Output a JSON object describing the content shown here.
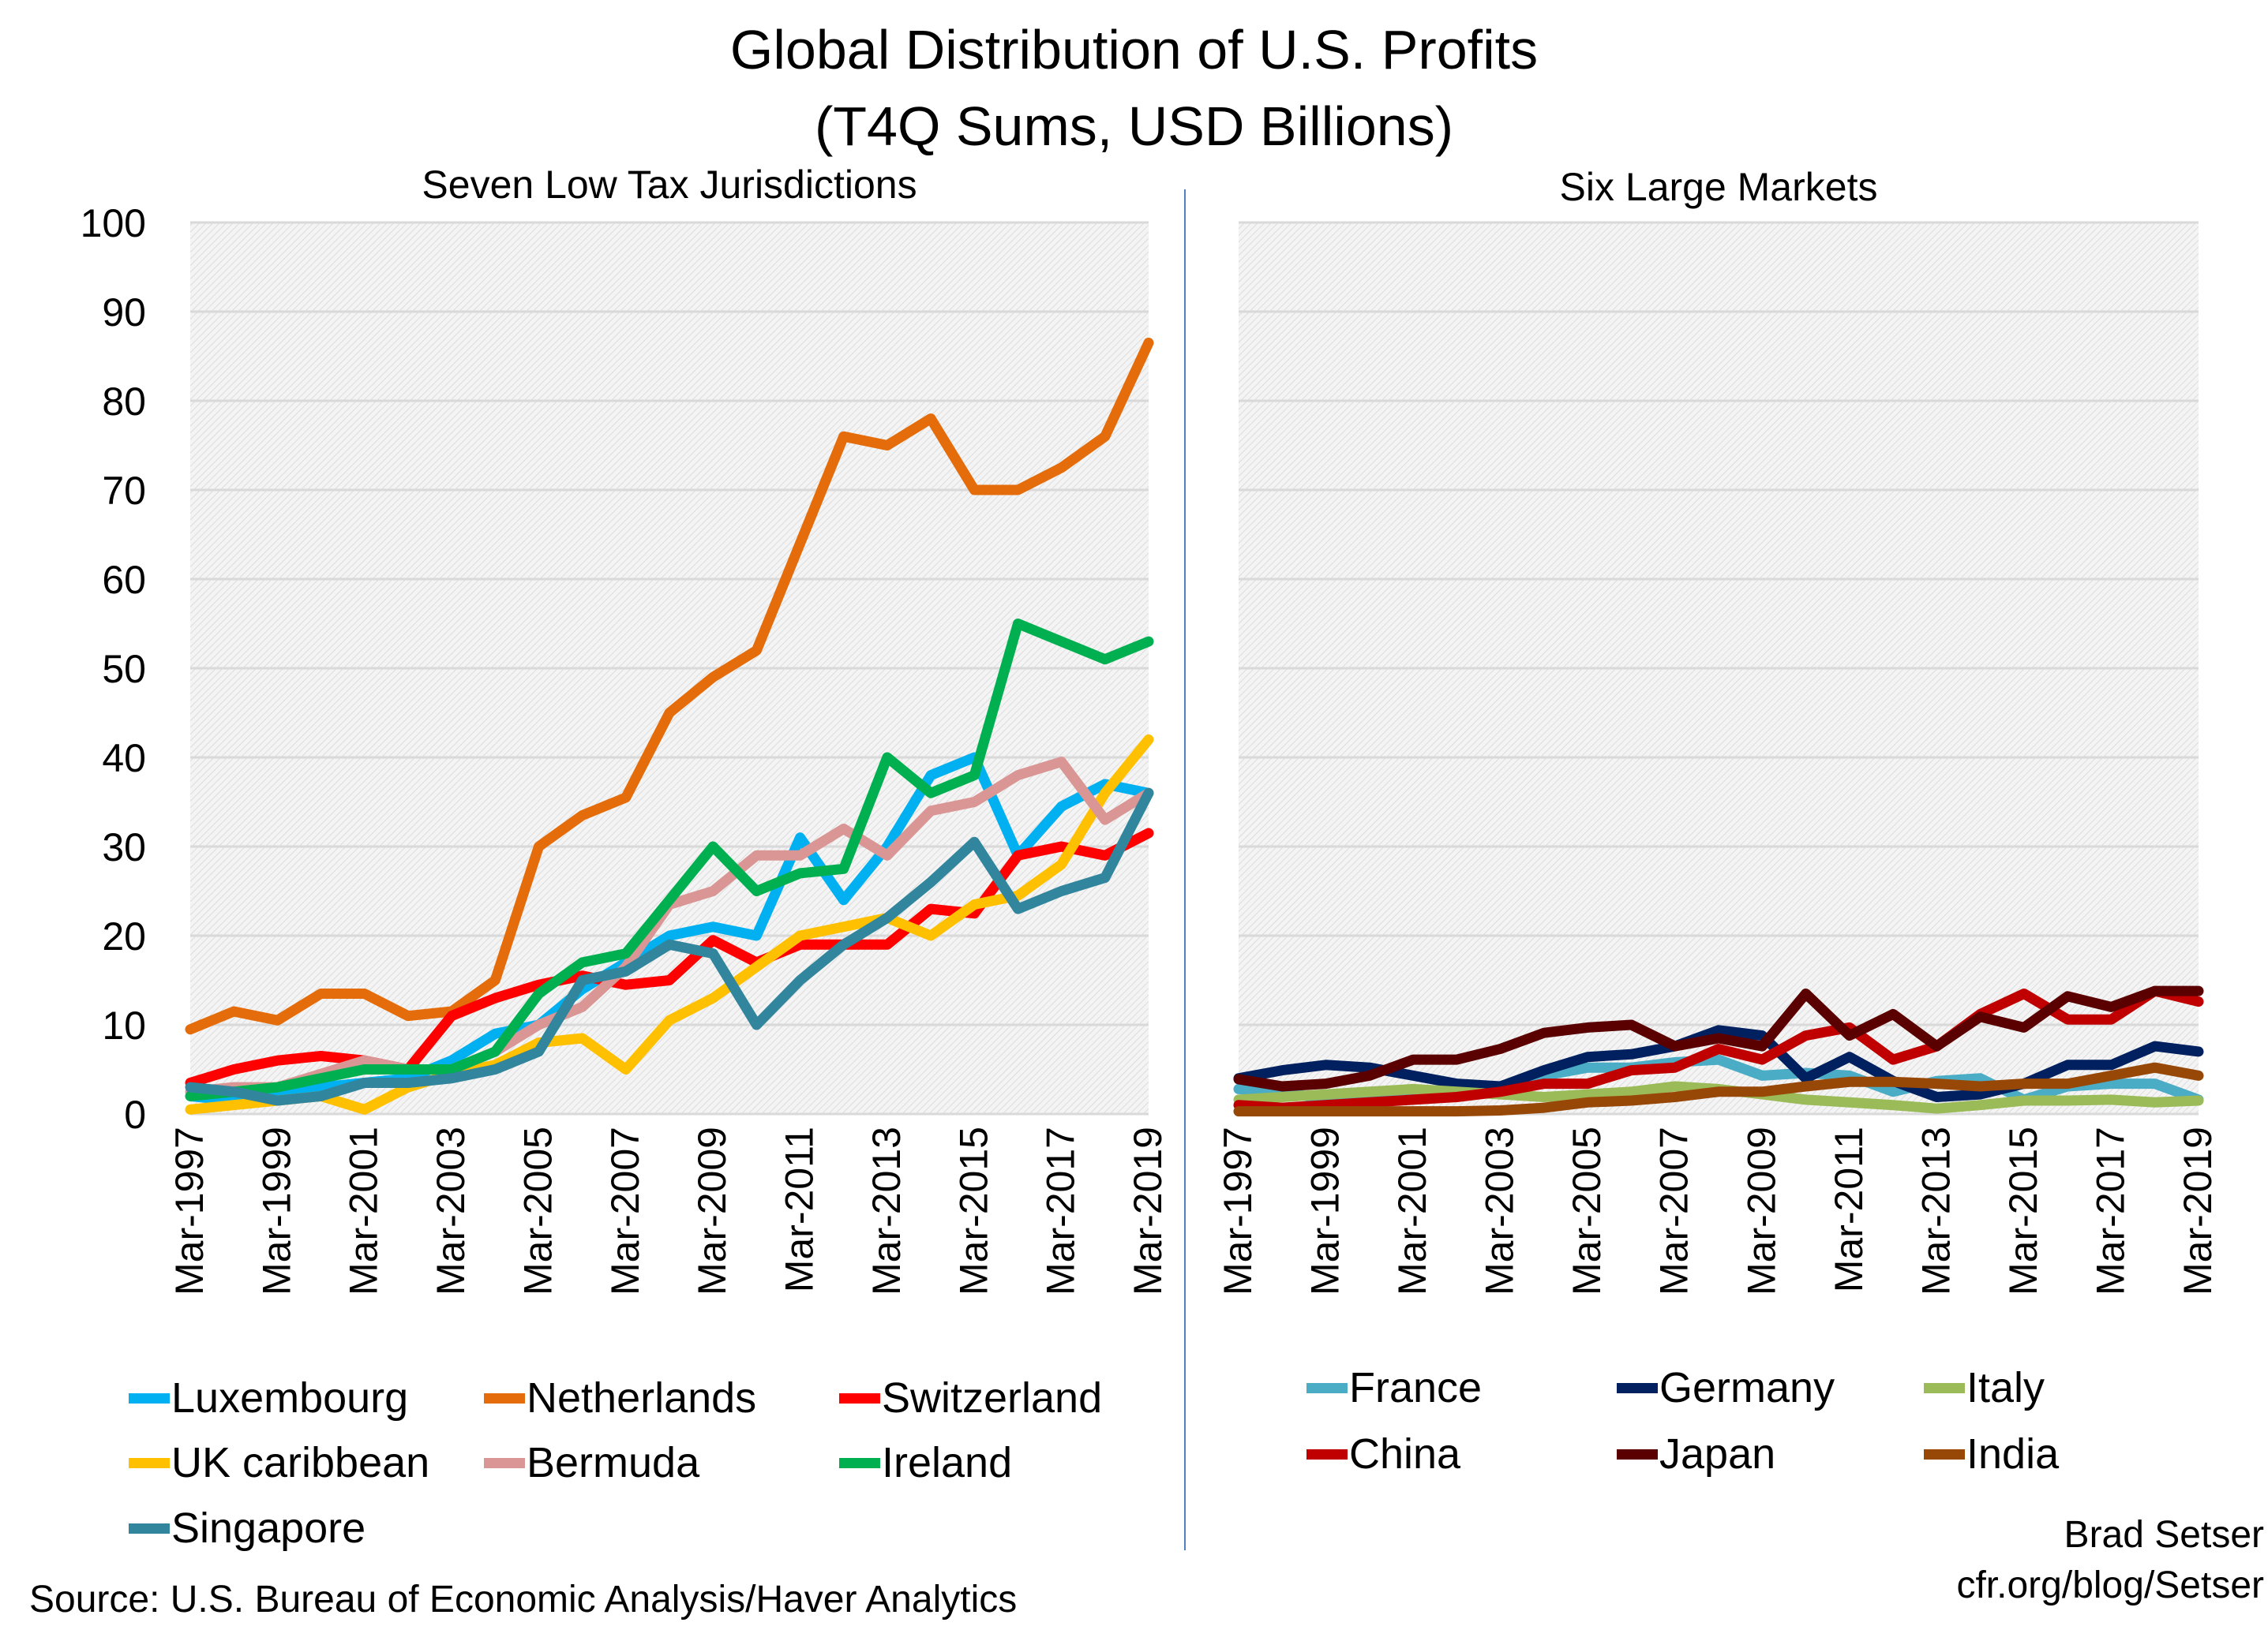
{
  "title_line1": "Global Distribution of U.S. Profits",
  "title_line2": "(T4Q Sums, USD Billions)",
  "source": "Source: U.S. Bureau of Economic Analysis/Haver Analytics",
  "author": "Brad Setser",
  "blog": "cfr.org/blog/Setser",
  "chart_data": [
    {
      "type": "line",
      "title": "Seven Low Tax Jurisdictions",
      "ylim": [
        0,
        100
      ],
      "yticks": [
        "0",
        "10",
        "20",
        "30",
        "40",
        "50",
        "60",
        "70",
        "80",
        "90",
        "100"
      ],
      "xtick_labels": [
        "Mar-1997",
        "Mar-1999",
        "Mar-2001",
        "Mar-2003",
        "Mar-2005",
        "Mar-2007",
        "Mar-2009",
        "Mar-2011",
        "Mar-2013",
        "Mar-2015",
        "Mar-2017",
        "Mar-2019"
      ],
      "x": [
        1997,
        1998,
        1999,
        2000,
        2001,
        2002,
        2003,
        2004,
        2005,
        2006,
        2007,
        2008,
        2009,
        2010,
        2011,
        2012,
        2013,
        2014,
        2015,
        2016,
        2017,
        2018,
        2019
      ],
      "grid": true,
      "legend": "bottom",
      "series": [
        {
          "name": "Luxembourg",
          "color": "#00b0f0",
          "values": [
            2,
            1.5,
            2,
            3,
            3.5,
            4,
            6,
            9,
            10,
            14,
            17,
            20,
            21,
            20,
            31,
            24,
            30,
            38,
            40,
            29,
            34.5,
            37,
            36
          ]
        },
        {
          "name": "Netherlands",
          "color": "#e46c0a",
          "values": [
            9.5,
            11.5,
            10.5,
            13.5,
            13.5,
            11,
            11.5,
            15,
            30,
            33.5,
            35.5,
            45,
            49,
            52,
            64,
            76,
            75,
            78,
            70,
            70,
            72.5,
            76,
            86.5
          ]
        },
        {
          "name": "Switzerland",
          "color": "#ff0000",
          "values": [
            3.5,
            5,
            6,
            6.5,
            6,
            5,
            11,
            13,
            14.5,
            15.5,
            14.5,
            15,
            19.5,
            17,
            19,
            19,
            19,
            23,
            22.5,
            29,
            30,
            29,
            31.5
          ]
        },
        {
          "name": "UK caribbean",
          "color": "#ffc000",
          "values": [
            0.5,
            1,
            1.5,
            2,
            0.5,
            3,
            4.5,
            5.5,
            8,
            8.5,
            5,
            10.5,
            13,
            16.5,
            20,
            21,
            22,
            20,
            23.5,
            24.5,
            28,
            36,
            42
          ]
        },
        {
          "name": "Bermuda",
          "color": "#d99694",
          "values": [
            2.5,
            3,
            3,
            4.5,
            6,
            5,
            5,
            7,
            10,
            12,
            16.5,
            23.5,
            25,
            29,
            29,
            32,
            29,
            34,
            35,
            38,
            39.5,
            33,
            36
          ]
        },
        {
          "name": "Ireland",
          "color": "#00b050",
          "values": [
            2,
            2.5,
            3,
            4,
            5,
            5,
            5,
            7,
            13.5,
            17,
            18,
            24,
            30,
            25,
            27,
            27.5,
            40,
            36,
            38,
            55,
            53,
            51,
            53
          ]
        },
        {
          "name": "Singapore",
          "color": "#31859c",
          "values": [
            3,
            2.5,
            1.5,
            2,
            3.5,
            3.5,
            4,
            5,
            7,
            15,
            16,
            19,
            18,
            10,
            15,
            19,
            22,
            26,
            30.5,
            23,
            25,
            26.5,
            36
          ]
        }
      ]
    },
    {
      "type": "line",
      "title": "Six Large Markets",
      "ylim": [
        0,
        100
      ],
      "xtick_labels": [
        "Mar-1997",
        "Mar-1999",
        "Mar-2001",
        "Mar-2003",
        "Mar-2005",
        "Mar-2007",
        "Mar-2009",
        "Mar-2011",
        "Mar-2013",
        "Mar-2015",
        "Mar-2017",
        "Mar-2019"
      ],
      "x": [
        1997,
        1998,
        1999,
        2000,
        2001,
        2002,
        2003,
        2004,
        2005,
        2006,
        2007,
        2008,
        2009,
        2010,
        2011,
        2012,
        2013,
        2014,
        2015,
        2016,
        2017,
        2018,
        2019
      ],
      "grid": true,
      "legend": "bottom",
      "series": [
        {
          "name": "France",
          "color": "#4bacc6",
          "values": [
            2.8,
            2.5,
            1.6,
            1.6,
            1.9,
            2.2,
            2.5,
            4.3,
            5.2,
            5.2,
            5.8,
            6.1,
            4.3,
            4.6,
            4.3,
            2.5,
            3.7,
            4,
            1.6,
            3.1,
            3.4,
            3.4,
            1.6
          ]
        },
        {
          "name": "Germany",
          "color": "#002060",
          "values": [
            4,
            4.9,
            5.5,
            5.2,
            4.3,
            3.4,
            3.1,
            4.9,
            6.4,
            6.7,
            7.6,
            9.4,
            8.8,
            4,
            6.4,
            3.7,
            1.9,
            2.2,
            3.4,
            5.5,
            5.5,
            7.6,
            7
          ]
        },
        {
          "name": "Italy",
          "color": "#9bbb59",
          "values": [
            1.6,
            1.9,
            2.2,
            2.5,
            2.8,
            2.5,
            2.2,
            1.9,
            2.2,
            2.5,
            3.1,
            2.8,
            2.2,
            1.6,
            1.3,
            1,
            0.6,
            1,
            1.5,
            1.5,
            1.6,
            1.3,
            1.5
          ]
        },
        {
          "name": "China",
          "color": "#c00000",
          "values": [
            1,
            0.7,
            1,
            1.3,
            1.6,
            1.9,
            2.5,
            3.4,
            3.4,
            4.9,
            5.2,
            7.3,
            6.1,
            8.8,
            9.7,
            6.1,
            7.6,
            11.2,
            13.5,
            10.6,
            10.6,
            13.8,
            12.6
          ]
        },
        {
          "name": "Japan",
          "color": "#5a0000",
          "values": [
            3.9,
            3.1,
            3.4,
            4.3,
            6.1,
            6.1,
            7.3,
            9.1,
            9.7,
            10,
            7.6,
            8.5,
            7.6,
            13.5,
            8.8,
            11.2,
            7.6,
            10.9,
            9.7,
            13.2,
            12,
            13.8,
            13.8
          ]
        },
        {
          "name": "India",
          "color": "#974706",
          "values": [
            0.3,
            0.3,
            0.3,
            0.3,
            0.3,
            0.3,
            0.4,
            0.7,
            1.3,
            1.5,
            1.9,
            2.5,
            2.5,
            3.1,
            3.6,
            3.6,
            3.4,
            3.1,
            3.4,
            3.4,
            4.3,
            5.2,
            4.3
          ]
        }
      ]
    }
  ]
}
